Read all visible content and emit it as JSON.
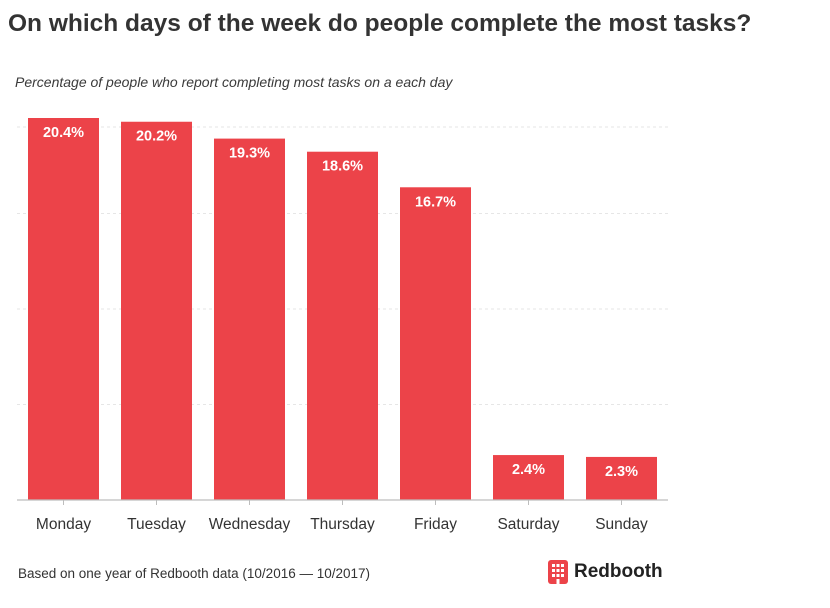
{
  "title": "On which days of the week do people complete the most tasks?",
  "subtitle": "Percentage of people who report completing most tasks on a each day",
  "footer": {
    "note": "Based on one year of Redbooth data (10/2016 — 10/2017)",
    "brand": "Redbooth",
    "brand_icon": "redbooth-logo-icon"
  },
  "colors": {
    "bar": "#ec4349",
    "bar_label": "#ffffff",
    "tick_label": "#333333",
    "grid": "#e6e6e6",
    "axis": "#bdbdbd"
  },
  "chart_data": {
    "type": "bar",
    "title": "On which days of the week do people complete the most tasks?",
    "subtitle": "Percentage of people who report completing most tasks on a each day",
    "categories": [
      "Monday",
      "Tuesday",
      "Wednesday",
      "Thursday",
      "Friday",
      "Saturday",
      "Sunday"
    ],
    "values": [
      20.4,
      20.2,
      19.3,
      18.6,
      16.7,
      2.4,
      2.3
    ],
    "data_labels": [
      "20.4%",
      "20.2%",
      "19.3%",
      "18.6%",
      "16.7%",
      "2.4%",
      "2.3%"
    ],
    "xlabel": "",
    "ylabel": "",
    "ylim": [
      0,
      20.4
    ],
    "grid": true,
    "legend": "none"
  }
}
